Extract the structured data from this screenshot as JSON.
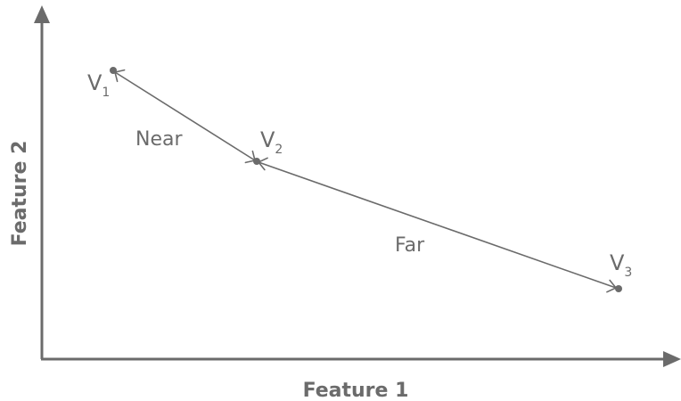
{
  "axes": {
    "x_title": "Feature 1",
    "y_title": "Feature 2"
  },
  "points": [
    {
      "letter": "V",
      "subscript": "1"
    },
    {
      "letter": "V",
      "subscript": "2"
    },
    {
      "letter": "V",
      "subscript": "3"
    }
  ],
  "links": [
    {
      "label": "Near"
    },
    {
      "label": "Far"
    }
  ],
  "colors": {
    "ink": "#6b6b6b",
    "background": "#ffffff"
  }
}
